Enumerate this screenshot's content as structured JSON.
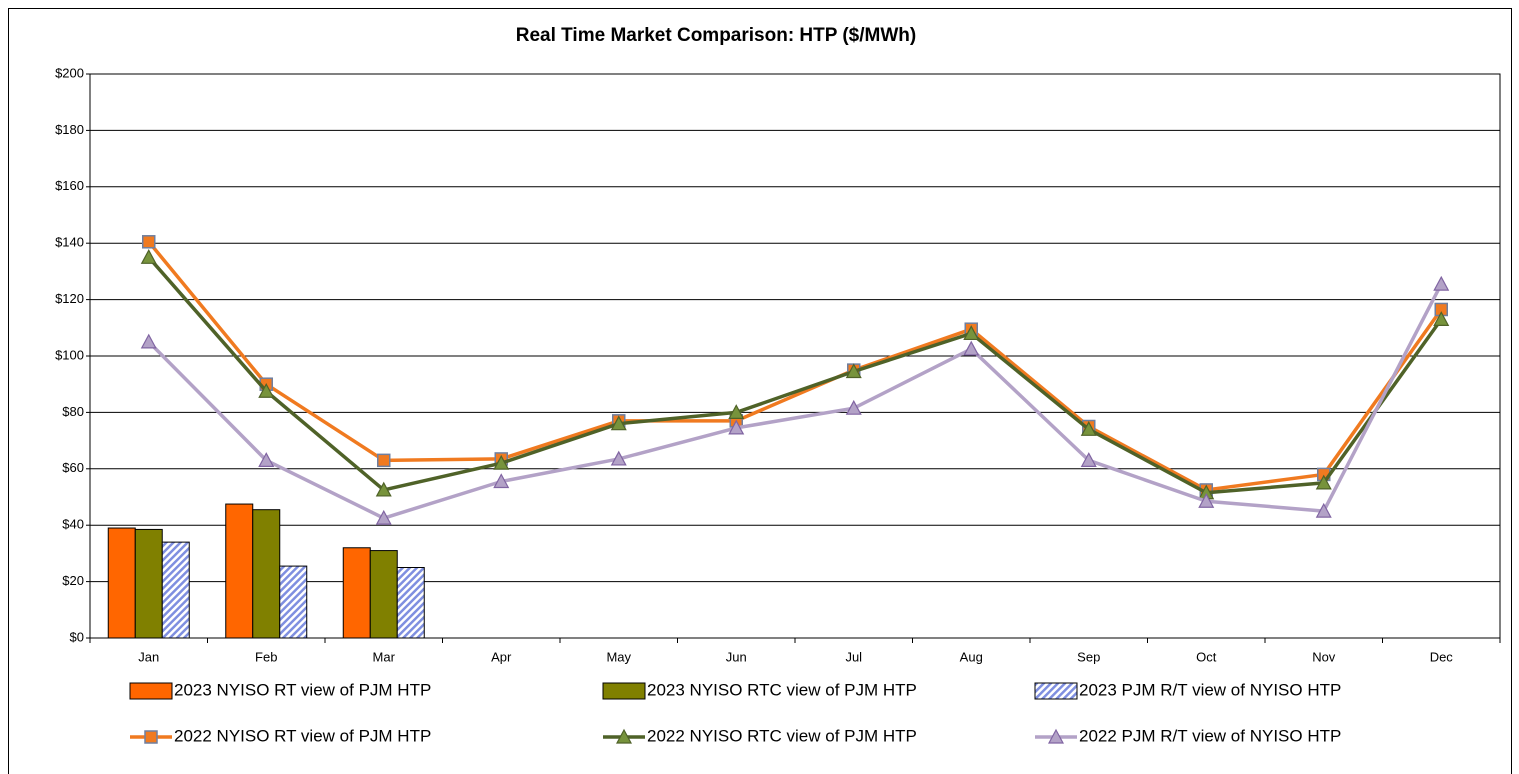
{
  "chart_data": {
    "type": "combo",
    "title": "Real Time Market Comparison: HTP ($/MWh)",
    "categories": [
      "Jan",
      "Feb",
      "Mar",
      "Apr",
      "May",
      "Jun",
      "Jul",
      "Aug",
      "Sep",
      "Oct",
      "Nov",
      "Dec"
    ],
    "ylim": [
      0,
      200
    ],
    "yticks": [
      {
        "value": 0,
        "label": "$0"
      },
      {
        "value": 20,
        "label": "$20"
      },
      {
        "value": 40,
        "label": "$40"
      },
      {
        "value": 60,
        "label": "$60"
      },
      {
        "value": 80,
        "label": "$80"
      },
      {
        "value": 100,
        "label": "$100"
      },
      {
        "value": 120,
        "label": "$120"
      },
      {
        "value": 140,
        "label": "$140"
      },
      {
        "value": 160,
        "label": "$160"
      },
      {
        "value": 180,
        "label": "$180"
      },
      {
        "value": 200,
        "label": "$200"
      }
    ],
    "grid": true,
    "series": [
      {
        "name": "2023 NYISO RT view of PJM  HTP",
        "type": "bar",
        "color": "#ff6600",
        "values": [
          39,
          47.5,
          32,
          null,
          null,
          null,
          null,
          null,
          null,
          null,
          null,
          null
        ]
      },
      {
        "name": "2023 NYISO RTC view of PJM  HTP",
        "type": "bar",
        "color": "#808000",
        "values": [
          38.5,
          45.5,
          31,
          null,
          null,
          null,
          null,
          null,
          null,
          null,
          null,
          null
        ]
      },
      {
        "name": "2023 PJM R/T view of NYISO  HTP",
        "type": "bar",
        "color": "#7f8fe0",
        "hatch": true,
        "values": [
          34,
          25.5,
          25,
          null,
          null,
          null,
          null,
          null,
          null,
          null,
          null,
          null
        ]
      },
      {
        "name": "2022 NYISO RT view of PJM  HTP",
        "type": "line",
        "color": "#f07a20",
        "marker": "square",
        "marker_color": "#f07a20",
        "values": [
          140.5,
          90,
          63,
          63.5,
          77,
          77,
          95,
          109.5,
          75,
          52.5,
          58,
          116.5
        ]
      },
      {
        "name": "2022 NYISO RTC view of PJM  HTP",
        "type": "line",
        "color": "#4f6228",
        "marker": "triangle",
        "marker_color": "#77933c",
        "values": [
          135,
          87.5,
          52.5,
          62,
          76,
          80,
          94.5,
          108,
          74,
          51.5,
          55,
          113
        ]
      },
      {
        "name": "2022 PJM R/T view of NYISO  HTP",
        "type": "line",
        "color": "#b3a2c7",
        "marker": "triangle",
        "marker_color": "#b3a2c7",
        "values": [
          105,
          63,
          42.5,
          55.5,
          63.5,
          74.5,
          81.5,
          102.5,
          63,
          48.5,
          45,
          125.5
        ]
      }
    ]
  }
}
